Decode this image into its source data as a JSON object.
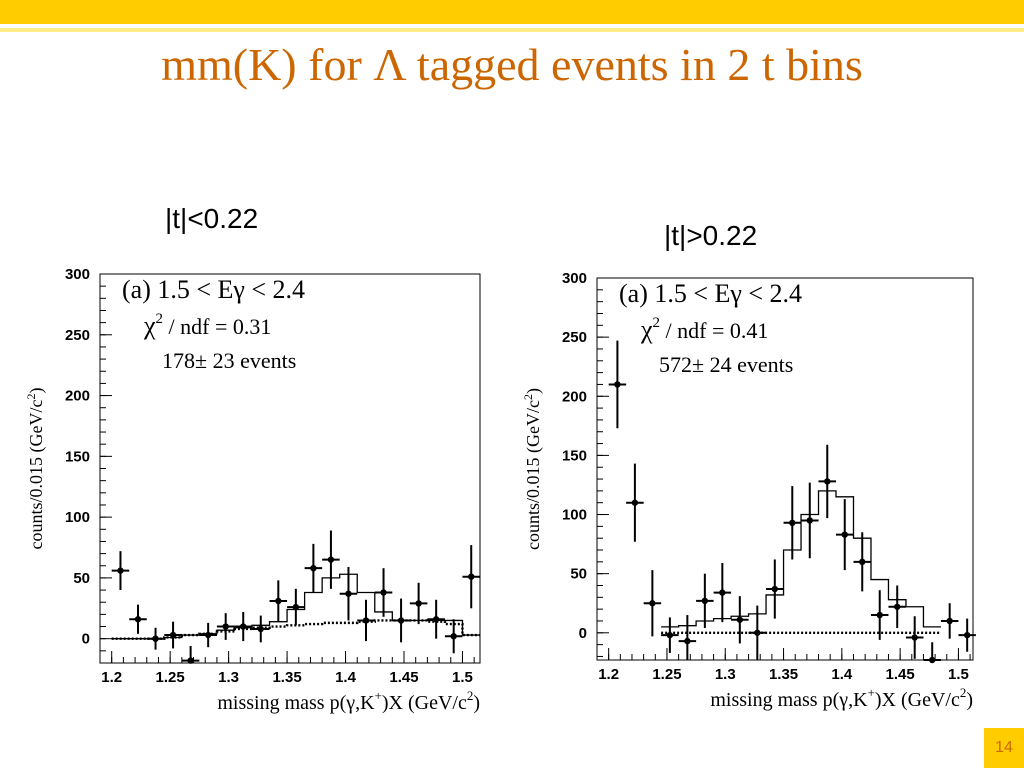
{
  "slide": {
    "title": "mm(K) for Λ tagged events in 2 t bins",
    "page_number": "14",
    "colors": {
      "banner": "#ffcc00",
      "title": "#cc6600"
    }
  },
  "bins": [
    {
      "label": "|t|<0.22"
    },
    {
      "label": "|t|>0.22"
    }
  ],
  "chart_data": [
    {
      "type": "scatter",
      "panel_tag": "(a)",
      "energy_range": "1.5 < Eγ < 2.4",
      "chi2_label": "χ",
      "chi2_sup": "2",
      "chi2_text": " / ndf = 0.31",
      "events": "178± 23 events",
      "ylabel_main": "counts/0.015 (GeV/c",
      "ylabel_sup": "2",
      "ylabel_end": ")",
      "xlabel_main": "missing mass p(γ,K",
      "xlabel_sup": "+",
      "xlabel_mid": ")X  (GeV/c",
      "xlabel_sup2": "2",
      "xlabel_end": ")",
      "xlim": [
        1.19,
        1.515
      ],
      "ylim": [
        -20,
        300
      ],
      "xticks": [
        "1.2",
        "1.25",
        "1.3",
        "1.35",
        "1.4",
        "1.45",
        "1.5"
      ],
      "yticks": [
        "0",
        "50",
        "100",
        "150",
        "200",
        "250",
        "300"
      ],
      "points": [
        {
          "x": 1.2075,
          "y": 56,
          "err": 16
        },
        {
          "x": 1.2225,
          "y": 16,
          "err": 12
        },
        {
          "x": 1.2375,
          "y": 0,
          "err": 9
        },
        {
          "x": 1.2525,
          "y": 3,
          "err": 11
        },
        {
          "x": 1.2675,
          "y": -18,
          "err": 12
        },
        {
          "x": 1.2825,
          "y": 3,
          "err": 10
        },
        {
          "x": 1.2975,
          "y": 10,
          "err": 11
        },
        {
          "x": 1.3125,
          "y": 10,
          "err": 12
        },
        {
          "x": 1.3275,
          "y": 8,
          "err": 11
        },
        {
          "x": 1.3425,
          "y": 31,
          "err": 17
        },
        {
          "x": 1.3575,
          "y": 26,
          "err": 15
        },
        {
          "x": 1.3725,
          "y": 58,
          "err": 20
        },
        {
          "x": 1.3875,
          "y": 65,
          "err": 24
        },
        {
          "x": 1.4025,
          "y": 37,
          "err": 22
        },
        {
          "x": 1.4175,
          "y": 15,
          "err": 17
        },
        {
          "x": 1.4325,
          "y": 38,
          "err": 20
        },
        {
          "x": 1.4475,
          "y": 15,
          "err": 18
        },
        {
          "x": 1.4625,
          "y": 29,
          "err": 17
        },
        {
          "x": 1.4775,
          "y": 16,
          "err": 16
        },
        {
          "x": 1.4925,
          "y": 2,
          "err": 14
        },
        {
          "x": 1.5075,
          "y": 51,
          "err": 26
        }
      ],
      "fit_x": [
        1.2,
        1.215,
        1.23,
        1.245,
        1.26,
        1.275,
        1.29,
        1.305,
        1.32,
        1.335,
        1.35,
        1.365,
        1.38,
        1.395,
        1.41,
        1.425,
        1.44,
        1.455,
        1.47,
        1.485,
        1.5
      ],
      "fit_total": [
        0,
        0,
        0,
        1,
        3,
        4,
        7,
        9,
        11,
        14,
        24,
        38,
        50,
        53,
        38,
        22,
        15,
        15,
        15,
        15,
        3
      ],
      "fit_background": [
        0,
        0,
        0,
        1,
        3,
        4,
        6,
        8,
        9,
        10,
        11,
        12,
        13,
        13,
        14,
        15,
        15,
        15,
        14,
        12,
        3
      ]
    },
    {
      "type": "scatter",
      "panel_tag": "(a)",
      "energy_range": "1.5 < Eγ < 2.4",
      "chi2_label": "χ",
      "chi2_sup": "2",
      "chi2_text": " / ndf = 0.41",
      "events": "572± 24 events",
      "ylabel_main": "counts/0.015 (GeV/c",
      "ylabel_sup": "2",
      "ylabel_end": ")",
      "xlabel_main": "missing mass p(γ,K",
      "xlabel_sup": "+",
      "xlabel_mid": ")X  (GeV/c",
      "xlabel_sup2": "2",
      "xlabel_end": ")",
      "xlim": [
        1.19,
        1.5125
      ],
      "ylim": [
        -23,
        300
      ],
      "xticks": [
        "1.2",
        "1.25",
        "1.3",
        "1.35",
        "1.4",
        "1.45",
        "1.5"
      ],
      "yticks": [
        "0",
        "50",
        "100",
        "150",
        "200",
        "250",
        "300"
      ],
      "points": [
        {
          "x": 1.2075,
          "y": 210,
          "err": 37
        },
        {
          "x": 1.2225,
          "y": 110,
          "err": 33
        },
        {
          "x": 1.2375,
          "y": 25,
          "err": 28
        },
        {
          "x": 1.2525,
          "y": -2,
          "err": 15
        },
        {
          "x": 1.2675,
          "y": -7,
          "err": 22
        },
        {
          "x": 1.2825,
          "y": 27,
          "err": 23
        },
        {
          "x": 1.2975,
          "y": 34,
          "err": 25
        },
        {
          "x": 1.3125,
          "y": 11,
          "err": 20
        },
        {
          "x": 1.3275,
          "y": 0,
          "err": 23
        },
        {
          "x": 1.3425,
          "y": 37,
          "err": 25
        },
        {
          "x": 1.3575,
          "y": 93,
          "err": 31
        },
        {
          "x": 1.3725,
          "y": 95,
          "err": 32
        },
        {
          "x": 1.3875,
          "y": 128,
          "err": 31
        },
        {
          "x": 1.4025,
          "y": 83,
          "err": 30
        },
        {
          "x": 1.4175,
          "y": 60,
          "err": 25
        },
        {
          "x": 1.4325,
          "y": 15,
          "err": 21
        },
        {
          "x": 1.4475,
          "y": 22,
          "err": 18
        },
        {
          "x": 1.4625,
          "y": -4,
          "err": 18
        },
        {
          "x": 1.4775,
          "y": -23,
          "err": 15
        },
        {
          "x": 1.4925,
          "y": 10,
          "err": 15
        },
        {
          "x": 1.5075,
          "y": -2,
          "err": 14
        }
      ],
      "fit_x": [
        1.245,
        1.26,
        1.275,
        1.29,
        1.305,
        1.32,
        1.335,
        1.35,
        1.365,
        1.38,
        1.395,
        1.41,
        1.425,
        1.44,
        1.455,
        1.47
      ],
      "fit_total": [
        5,
        6,
        10,
        12,
        14,
        16,
        32,
        70,
        100,
        120,
        115,
        80,
        45,
        28,
        22,
        5
      ],
      "fit_background": [
        0,
        0,
        0,
        0,
        0,
        0,
        0,
        0,
        0,
        0,
        0,
        0,
        0,
        0,
        0,
        0
      ]
    }
  ]
}
